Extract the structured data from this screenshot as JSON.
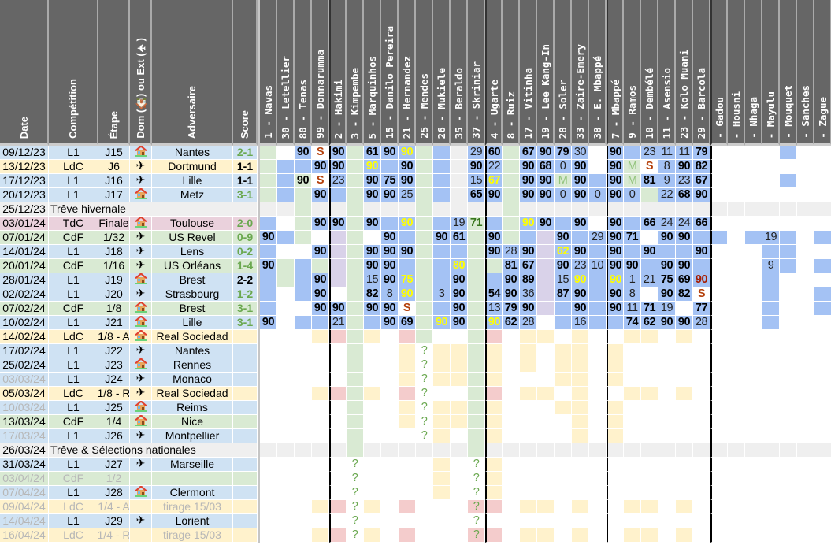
{
  "headers": {
    "date": "Date",
    "competition": "Compétition",
    "stage": "Étape",
    "venue": "Dom (🏠) ou Ext (✈)",
    "opponent": "Adversaire",
    "score": "Score"
  },
  "players": [
    "1 - Navas",
    "30 - Letellier",
    "80 - Tenas",
    "99 - Donnarumma",
    "2 - Hakimi",
    "3 - Kimpembe",
    "5 - Marquinhos",
    "15 - Danilo Pereira",
    "21 - Hernandez",
    "25 - Mendes",
    "26 - Mukiele",
    "35 - Beraldo",
    "37 - Skriniar",
    "4 - Ugarte",
    "8 - Ruiz",
    "17 - Vitinha",
    "19 - Lee Kang-In",
    "28 - Soler",
    "33 - Zaire-Emery",
    "38 - E. Mbappé",
    "7 - Mbappé",
    "9 - Ramos",
    "10 - Dembélé",
    "11 - Asensio",
    "23 - Kolo Muani",
    "29 - Barcola",
    " - Gadou",
    " - Housni",
    " - Nhaga",
    " - Mayulu",
    " - Mouquet",
    " - Sanches",
    " - Zague"
  ],
  "colors": {
    "L1": "#cfe2f3",
    "LdC": "#fff2cc",
    "CdF": "#d9ead3",
    "TdC": "#ead1dc",
    "break": "#efefef",
    "B": "#a4c2f4",
    "G": "#d9ead3",
    "W": "#ffffff",
    "L": "#d9d2e9",
    "Y": "#fff2cc",
    "R": "#f4cccc",
    "E": "#efefef"
  },
  "rows": [
    {
      "date": "09/12/23",
      "comp": "L1",
      "stage": "J15",
      "venue": "home",
      "opponent": "Nantes",
      "score": "2-1",
      "result": "win",
      "cells": [
        "G",
        "W",
        "B|90|b",
        "W|S|s",
        "B|90|b",
        "G",
        "B|61|b",
        "B|90|b",
        "B|90|y",
        "G",
        "B",
        "E",
        "B|29|n",
        "B|60|b",
        "G",
        "B|67|b",
        "B|90|b",
        "B|79|b",
        "B|30|n",
        "W",
        "B|90|b",
        "B",
        "B|23|n",
        "B|11|n",
        "B|11|n",
        "B|79|b",
        "W",
        "W",
        "W",
        "W",
        "B",
        "W",
        "W"
      ]
    },
    {
      "date": "13/12/23",
      "comp": "LdC",
      "stage": "J6",
      "venue": "away",
      "opponent": "Dortmund",
      "score": "1-1",
      "result": "draw",
      "cells": [
        "G",
        "B",
        "B",
        "B|90|b",
        "B|90|b",
        "G",
        "B|90|y",
        "B",
        "B|90|b",
        "G",
        "B",
        "E",
        "B|90|b",
        "B|22|n",
        "G",
        "B|90|b",
        "B|68|b",
        "B|0|n",
        "B|90|b",
        "W",
        "B|90|b",
        "G|M|m",
        "W|S|s",
        "B|8|n",
        "B|90|b",
        "B|82|b",
        "W",
        "W",
        "W",
        "W",
        "W",
        "W",
        "W"
      ]
    },
    {
      "date": "17/12/23",
      "comp": "L1",
      "stage": "J16",
      "venue": "away",
      "opponent": "Lille",
      "score": "1-1",
      "result": "draw",
      "cells": [
        "G",
        "B",
        "G|90|b",
        "W|S|s",
        "B|23|n",
        "G",
        "B|90|b",
        "B|75|b",
        "B|90|b",
        "G",
        "B",
        "E",
        "B|15|n",
        "B|67|y",
        "G",
        "B|90|b",
        "B|90|b",
        "G|M|m",
        "B|90|b",
        "B",
        "B|90|b",
        "G|M|m",
        "B|81|b",
        "B|9|n",
        "B|23|n",
        "B|67|b",
        "W",
        "W",
        "W",
        "W",
        "B",
        "W",
        "W"
      ]
    },
    {
      "date": "20/12/23",
      "comp": "L1",
      "stage": "J17",
      "venue": "home",
      "opponent": "Metz",
      "score": "3-1",
      "result": "win",
      "cells": [
        "G",
        "B",
        "G",
        "B|90|b",
        "B",
        "G",
        "B|90|b",
        "B|90|b",
        "B|25|n",
        "G",
        "B",
        "E",
        "B|65|b",
        "B|90|b",
        "G",
        "B|90|b",
        "B|90|b",
        "B|0|n",
        "B|90|b",
        "B|0|n",
        "B|90|b",
        "B|0|n",
        "G",
        "B|22|n",
        "B|68|b",
        "B|90|b",
        "W",
        "W",
        "W",
        "W",
        "W",
        "W",
        "W"
      ]
    },
    {
      "date": "25/12/23",
      "comp": "break",
      "label": "Trêve hivernale",
      "fill": "E",
      "cells": {
        "2": "G",
        "5": "G",
        "9": "G",
        "14": "G"
      }
    },
    {
      "date": "03/01/24",
      "comp": "TdC",
      "stage": "Finale",
      "venue": "home",
      "opponent": "Toulouse",
      "score": "2-0",
      "result": "win",
      "cells": [
        "B",
        "W",
        "G",
        "B|90|b",
        "B|90|b",
        "G",
        "B|90|b",
        "B",
        "B|90|y",
        "G",
        "B",
        "B|19|n",
        "G|71|g",
        "B",
        "G",
        "B|90|y",
        "B|90|b",
        "B",
        "B|90|b",
        "W",
        "B|90|b",
        "B",
        "B|66|b",
        "B|24|n",
        "B|24|n",
        "B|66|b",
        "W",
        "W",
        "W",
        "W",
        "W",
        "W",
        "W"
      ]
    },
    {
      "date": "07/01/24",
      "comp": "CdF",
      "stage": "1/32",
      "venue": "away",
      "opponent": "US Revel",
      "score": "0-9",
      "result": "win",
      "cells": [
        "B|90|b",
        "B",
        "G",
        "W",
        "L",
        "G",
        "W",
        "B|90|b",
        "B",
        "G",
        "B|90|b",
        "B|61|b",
        "G",
        "B|90|b",
        "G",
        "B",
        "L",
        "B|90|b",
        "B",
        "B|29|n",
        "B|90|b",
        "B|71|b",
        "W",
        "B|90|b",
        "B|90|b",
        "B",
        "B",
        "W",
        "B",
        "B|19|n",
        "B",
        "W",
        "B"
      ]
    },
    {
      "date": "14/01/24",
      "comp": "L1",
      "stage": "J18",
      "venue": "away",
      "opponent": "Lens",
      "score": "0-2",
      "result": "win",
      "cells": [
        "B",
        "W",
        "W",
        "B|90|b",
        "L",
        "G",
        "B|90|b",
        "B|90|b",
        "B|90|b",
        "G",
        "B",
        "B",
        "G",
        "B|90|b",
        "B|28|n",
        "B|90|b",
        "L",
        "B|62|y",
        "B|90|b",
        "B",
        "B|90|b",
        "B",
        "B|90|b",
        "B",
        "B",
        "B|90|b",
        "W",
        "W",
        "W",
        "B",
        "B",
        "W",
        "W"
      ]
    },
    {
      "date": "20/01/24",
      "comp": "CdF",
      "stage": "1/16",
      "venue": "away",
      "opponent": "US Orléans",
      "score": "1-4",
      "result": "win",
      "cells": [
        "B|90|b",
        "G",
        "B",
        "G",
        "L",
        "G",
        "B|90|b",
        "B|90|b",
        "B",
        "G",
        "B",
        "B|80|y",
        "G",
        "G",
        "B|81|b",
        "B|67|b",
        "L",
        "B|90|b",
        "B|23|n",
        "B|10|n",
        "B|90|b",
        "B|90|b",
        "B",
        "B|90|b",
        "B|90|b",
        "B",
        "W",
        "W",
        "W",
        "B|9|n",
        "B",
        "W",
        "B"
      ]
    },
    {
      "date": "28/01/24",
      "comp": "L1",
      "stage": "J19",
      "venue": "home",
      "opponent": "Brest",
      "score": "2-2",
      "result": "draw",
      "cells": [
        "B",
        "G",
        "B",
        "B|90|b",
        "L",
        "G",
        "B|15|n",
        "B|90|b",
        "B|75|y",
        "G",
        "B",
        "B|90|b",
        "G",
        "B",
        "B|90|b",
        "B|89|b",
        "L",
        "B|15|n",
        "B|90|y",
        "B",
        "B|90|y",
        "B|1|n",
        "B|21|n",
        "B|75|b",
        "B|69|b",
        "B|90|r",
        "W",
        "W",
        "W",
        "B",
        "W",
        "W",
        "W"
      ]
    },
    {
      "date": "02/02/24",
      "comp": "L1",
      "stage": "J20",
      "venue": "away",
      "opponent": "Strasbourg",
      "score": "1-2",
      "result": "win",
      "cells": [
        "B",
        "W",
        "B",
        "B|90|b",
        "W",
        "G",
        "B|82|b",
        "B|8|n",
        "B|90|y",
        "G",
        "B|3|n",
        "B|90|b",
        "G",
        "B|54|b",
        "B|90|b",
        "B|36|n",
        "L",
        "B|87|b",
        "B|90|b",
        "B",
        "B|90|b",
        "B|8|n",
        "W",
        "B|90|b",
        "B|82|b",
        "W|S|s",
        "W",
        "W",
        "W",
        "B",
        "W",
        "W",
        "B"
      ]
    },
    {
      "date": "07/02/24",
      "comp": "CdF",
      "stage": "1/8",
      "venue": "home",
      "opponent": "Brest",
      "score": "3-1",
      "result": "win",
      "cells": [
        "B",
        "W",
        "W",
        "B|90|b",
        "B|90|b",
        "G",
        "B|90|b",
        "B|90|b",
        "W|S|s",
        "G",
        "B",
        "B|90|b",
        "G",
        "B|13|n",
        "B|79|b",
        "B|90|b",
        "L",
        "B",
        "B|90|b",
        "B",
        "B|90|b",
        "B|11|n",
        "B|71|b",
        "B|19|n",
        "W",
        "B|77|b",
        "W",
        "W",
        "W",
        "B",
        "W",
        "W",
        "B"
      ]
    },
    {
      "date": "10/02/24",
      "comp": "L1",
      "stage": "J21",
      "venue": "home",
      "opponent": "Lille",
      "score": "3-1",
      "result": "win",
      "cells": [
        "B|90|b",
        "W",
        "B",
        "B",
        "B|21|n",
        "G",
        "B",
        "B|90|b",
        "B|69|b",
        "G",
        "B|90|y",
        "B|90|b",
        "G",
        "B|90|y",
        "B|62|b",
        "B|28|n",
        "W",
        "B",
        "B|16|n",
        "B",
        "B",
        "B|74|b",
        "B|62|b",
        "B|90|b",
        "B|90|b",
        "B|28|n",
        "W",
        "W",
        "W",
        "B",
        "W",
        "W",
        "W"
      ]
    },
    {
      "date": "14/02/24",
      "comp": "LdC",
      "stage": "1/8 - A",
      "venue": "home",
      "opponent": "Real Sociedad",
      "score": "",
      "cells": {
        "3": "Y",
        "4": "R",
        "5": "G",
        "6": "Y",
        "8": "R",
        "9": "G",
        "12": "G",
        "13": "R",
        "15": "Y",
        "16": "Y",
        "18": "Y",
        "21": "Y",
        "22": "Y",
        "24": "Y"
      }
    },
    {
      "date": "17/02/24",
      "comp": "L1",
      "stage": "J22",
      "venue": "away",
      "opponent": "Nantes",
      "score": "",
      "cells": {
        "5": "G",
        "8": "Y",
        "9": "W|?|q",
        "10": "Y",
        "11": "Y",
        "12": "G",
        "13": "Y",
        "15": "Y",
        "17": "Y",
        "18": "Y",
        "20": "Y"
      }
    },
    {
      "date": "25/02/24",
      "comp": "L1",
      "stage": "J23",
      "venue": "home",
      "opponent": "Rennes",
      "score": "",
      "cells": {
        "5": "G",
        "8": "Y",
        "9": "W|?|q",
        "10": "Y",
        "11": "Y",
        "12": "G",
        "13": "Y",
        "15": "Y",
        "17": "Y",
        "18": "Y",
        "20": "Y"
      }
    },
    {
      "date": "03/03/24",
      "comp": "L1",
      "stage": "J24",
      "venue": "away",
      "opponent": "Monaco",
      "score": "",
      "greyDate": true,
      "cells": {
        "5": "G",
        "8": "Y",
        "9": "W|?|q",
        "10": "Y",
        "11": "Y",
        "12": "G",
        "13": "Y",
        "17": "Y",
        "18": "Y",
        "20": "Y"
      }
    },
    {
      "date": "05/03/24",
      "comp": "LdC",
      "stage": "1/8 - R",
      "venue": "away",
      "opponent": "Real Sociedad",
      "score": "",
      "cells": {
        "3": "Y",
        "4": "R",
        "5": "G",
        "6": "Y",
        "8": "R",
        "9": "W|?|q",
        "12": "G",
        "13": "R",
        "15": "Y",
        "16": "Y",
        "18": "Y",
        "21": "Y",
        "22": "Y",
        "24": "Y"
      }
    },
    {
      "date": "10/03/24",
      "comp": "L1",
      "stage": "J25",
      "venue": "home",
      "opponent": "Reims",
      "score": "",
      "greyDate": true,
      "cells": {
        "5": "G",
        "8": "Y",
        "9": "W|?|q",
        "10": "Y",
        "11": "Y",
        "12": "G",
        "13": "Y",
        "17": "Y",
        "18": "Y",
        "20": "Y"
      }
    },
    {
      "date": "13/03/24",
      "comp": "CdF",
      "stage": "1/4",
      "venue": "home",
      "opponent": "Nice",
      "score": "",
      "cells": {
        "5": "G",
        "8": "Y",
        "9": "W|?|q",
        "10": "Y",
        "11": "Y",
        "12": "G",
        "13": "Y",
        "18": "Y",
        "20": "Y"
      }
    },
    {
      "date": "17/03/24",
      "comp": "L1",
      "stage": "J26",
      "venue": "away",
      "opponent": "Montpellier",
      "score": "",
      "greyDate": true,
      "cells": {
        "5": "G",
        "9": "W|?|q",
        "10": "Y",
        "12": "G",
        "13": "Y",
        "18": "Y",
        "20": "Y"
      }
    },
    {
      "date": "26/03/24",
      "comp": "break",
      "label": "Trêve & Sélections nationales",
      "fill": "E",
      "cells": {
        "5": "G",
        "12": "G"
      }
    },
    {
      "date": "31/03/24",
      "comp": "L1",
      "stage": "J27",
      "venue": "away",
      "opponent": "Marseille",
      "score": "",
      "cells": {
        "5": "W|?|q",
        "10": "Y",
        "12": "W|?|q",
        "13": "Y"
      }
    },
    {
      "date": "03/04/24",
      "comp": "CdF",
      "stage": "1/2",
      "venue": "",
      "opponent": "",
      "score": "",
      "greyAll": true,
      "cells": {
        "5": "W|?|q",
        "10": "Y",
        "12": "W|?|q",
        "13": "Y"
      }
    },
    {
      "date": "07/04/24",
      "comp": "L1",
      "stage": "J28",
      "venue": "home",
      "opponent": "Clermont",
      "score": "",
      "greyDate": true,
      "cells": {
        "5": "W|?|q",
        "10": "Y",
        "12": "W|?|q",
        "13": "Y"
      }
    },
    {
      "date": "09/04/24",
      "comp": "LdC",
      "stage": "1/4 - A",
      "venue": "",
      "opponent": "tirage 15/03",
      "score": "",
      "greyAll": true,
      "cells": {
        "3": "Y",
        "4": "R",
        "5": "W|?|q",
        "6": "Y",
        "8": "R",
        "12": "R|?|q",
        "13": "R",
        "15": "Y",
        "16": "Y",
        "18": "Y",
        "21": "Y",
        "22": "Y",
        "24": "Y"
      }
    },
    {
      "date": "14/04/24",
      "comp": "L1",
      "stage": "J29",
      "venue": "away",
      "opponent": "Lorient",
      "score": "",
      "greyDate": true,
      "cells": {
        "5": "W|?|q",
        "12": "W|?|q"
      }
    },
    {
      "date": "16/04/24",
      "comp": "LdC",
      "stage": "1/4 - R",
      "venue": "",
      "opponent": "tirage 15/03",
      "score": "",
      "greyAll": true,
      "cells": {
        "3": "Y",
        "4": "R",
        "5": "W|?|q",
        "6": "Y",
        "8": "R",
        "12": "R|?|q",
        "13": "R",
        "15": "Y",
        "16": "Y",
        "18": "Y",
        "21": "Y",
        "22": "Y",
        "24": "Y"
      }
    }
  ]
}
